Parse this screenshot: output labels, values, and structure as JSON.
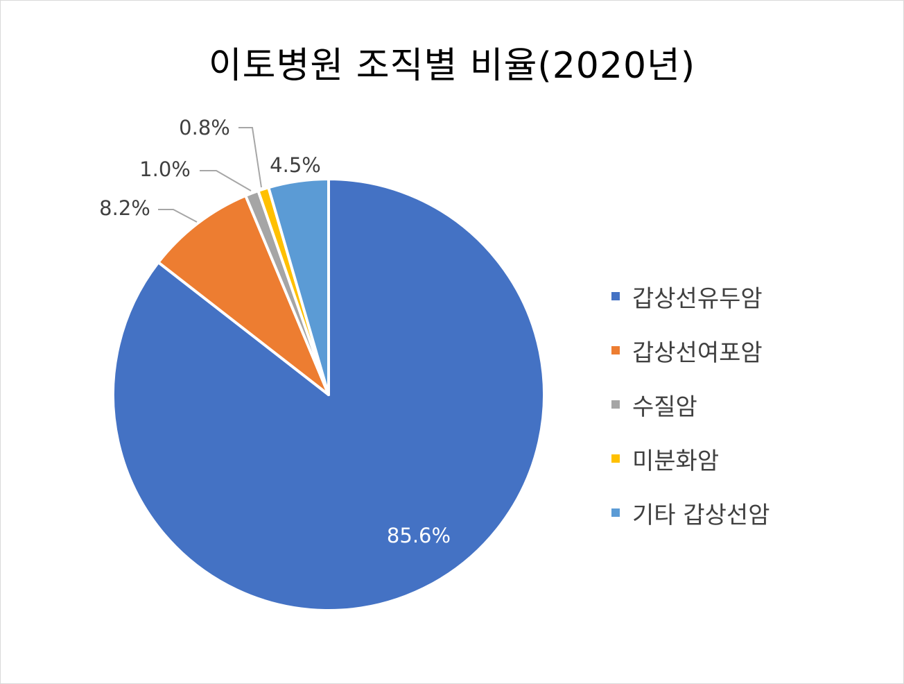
{
  "chart_data": {
    "type": "pie",
    "title": "이토병원 조직별 비율(2020년)",
    "categories": [
      "갑상선유두암",
      "갑상선여포암",
      "수질암",
      "미분화암",
      "기타 갑상선암"
    ],
    "values": [
      85.6,
      8.2,
      1.0,
      0.8,
      4.5
    ],
    "data_labels": [
      "85.6%",
      "8.2%",
      "1.0%",
      "0.8%",
      "4.5%"
    ],
    "colors": [
      "#4472C4",
      "#ED7D31",
      "#A5A5A5",
      "#FFC000",
      "#5B9BD5"
    ],
    "legend_position": "right"
  }
}
